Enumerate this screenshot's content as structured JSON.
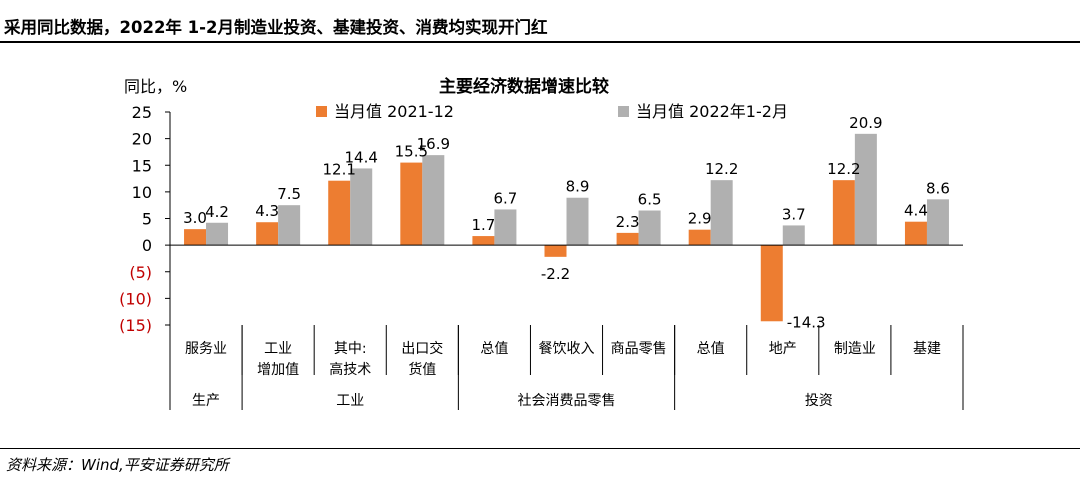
{
  "header": {
    "title": "采用同比数据，2022年 1-2月制造业投资、基建投资、消费均实现开门红"
  },
  "footer": {
    "source": "资料来源：Wind,平安证券研究所"
  },
  "colors": {
    "series_2021": "#ED7D31",
    "series_2022": "#B0B0B0",
    "negative_tick": "#C00000"
  },
  "chart_data": {
    "type": "bar",
    "title": "主要经济数据增速比较",
    "ylabel": "同比，%",
    "ylim": [
      -15,
      25
    ],
    "yticks": [
      {
        "value": 25,
        "label": "25"
      },
      {
        "value": 20,
        "label": "20"
      },
      {
        "value": 15,
        "label": "15"
      },
      {
        "value": 10,
        "label": "10"
      },
      {
        "value": 5,
        "label": "5"
      },
      {
        "value": 0,
        "label": "0"
      },
      {
        "value": -5,
        "label": "(5)"
      },
      {
        "value": -10,
        "label": "(10)"
      },
      {
        "value": -15,
        "label": "(15)"
      }
    ],
    "categories": [
      "服务业",
      "工业\n增加值",
      "其中:\n高技术",
      "出口交\n货值",
      "总值",
      "餐饮收入",
      "商品零售",
      "总值",
      "地产",
      "制造业",
      "基建"
    ],
    "groups": [
      {
        "label": "生产",
        "count": 1
      },
      {
        "label": "工业",
        "count": 3
      },
      {
        "label": "社会消费品零售",
        "count": 3
      },
      {
        "label": "投资",
        "count": 4
      }
    ],
    "series": [
      {
        "name": "当月值 2021-12",
        "values": [
          3.0,
          4.3,
          12.1,
          15.5,
          1.7,
          -2.2,
          2.3,
          2.9,
          -14.3,
          12.2,
          4.4
        ],
        "labels": [
          "3.0",
          "4.3",
          "12.1",
          "15.5",
          "1.7",
          "-2.2",
          "2.3",
          "2.9",
          "-14.3",
          "12.2",
          "4.4"
        ]
      },
      {
        "name": "当月值 2022年1-2月",
        "values": [
          4.2,
          7.5,
          14.4,
          16.9,
          6.7,
          8.9,
          6.5,
          12.2,
          3.7,
          20.9,
          8.6
        ],
        "labels": [
          "4.2",
          "7.5",
          "14.4",
          "16.9",
          "6.7",
          "8.9",
          "6.5",
          "12.2",
          "3.7",
          "20.9",
          "8.6"
        ]
      }
    ],
    "legend": "top-center",
    "grid": false
  }
}
